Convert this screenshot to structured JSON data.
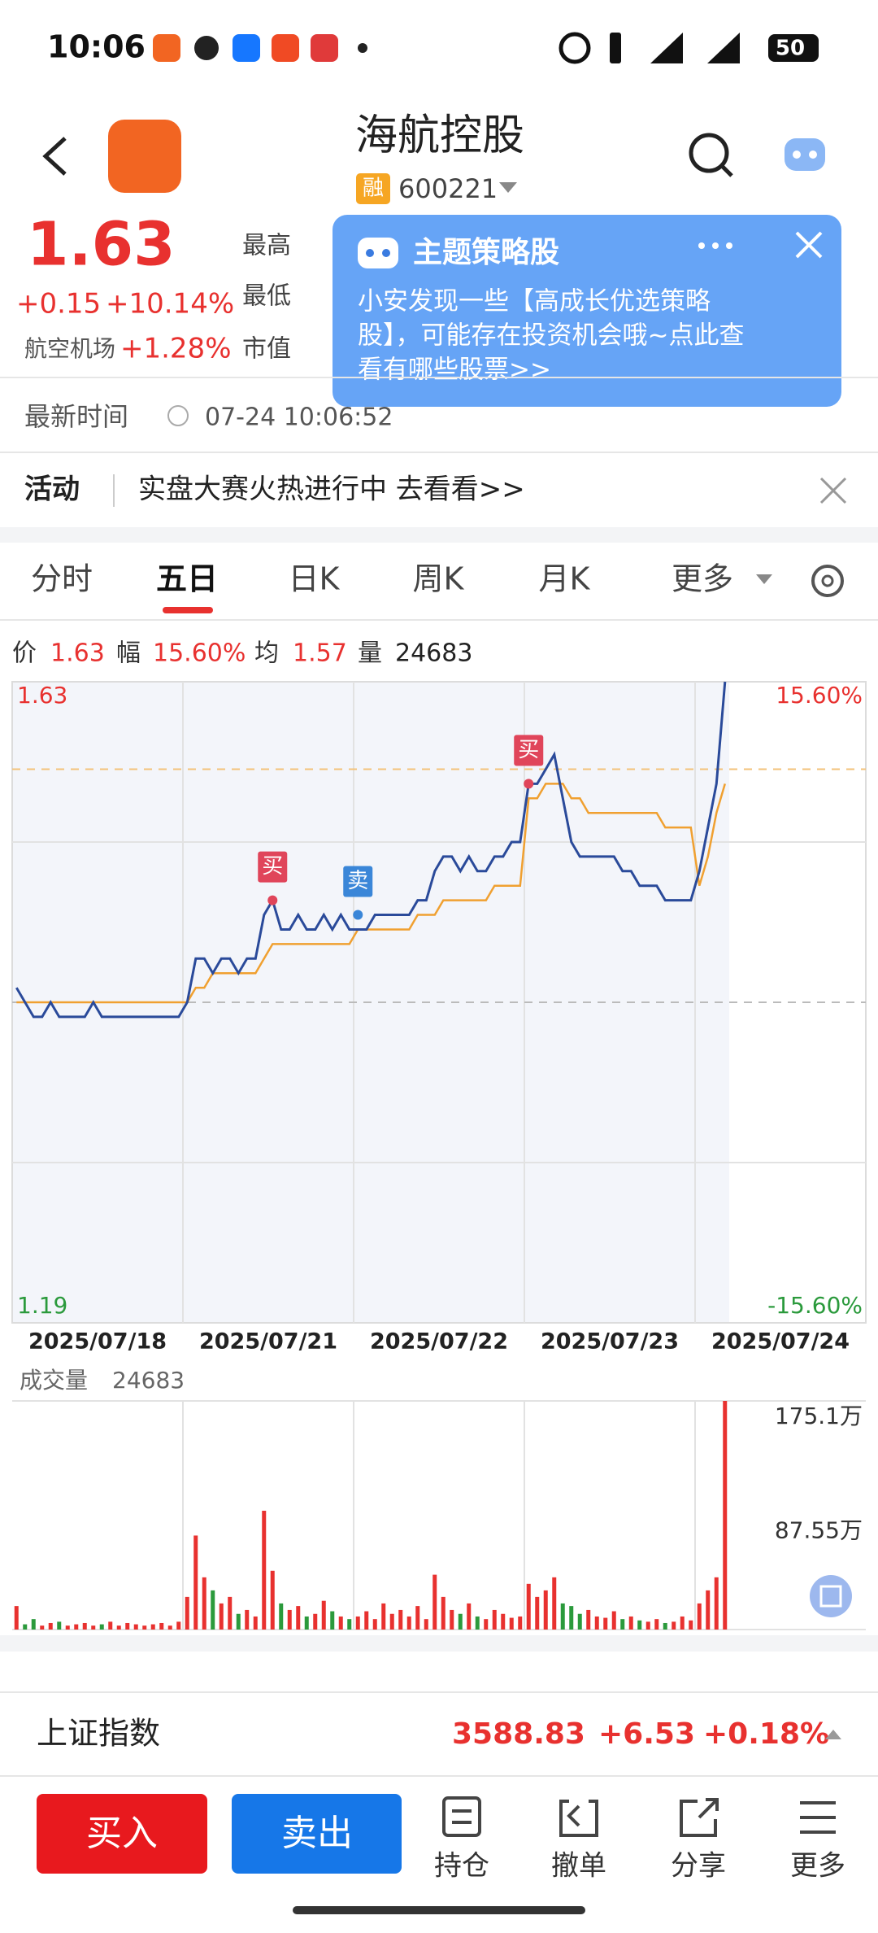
{
  "status_bar": {
    "time": "10:06",
    "battery": "50"
  },
  "header": {
    "title": "海航控股",
    "badge": "融",
    "code": "600221"
  },
  "quote": {
    "price": "1.63",
    "change": "+0.15",
    "change_pct": "+10.14%",
    "sector": "航空机场",
    "sector_pct": "+1.28%",
    "labels": [
      "最高",
      "最低",
      "市值"
    ]
  },
  "popup": {
    "title": "主题策略股",
    "lines": [
      "小安发现一些【高成长优选策略",
      "股】，可能存在投资机会哦~点此查",
      "看有哪些股票>>"
    ]
  },
  "update": {
    "label": "最新时间",
    "time": "07-24 10:06:52"
  },
  "activity": {
    "label": "活动",
    "text": "实盘大赛火热进行中 去看看>>"
  },
  "tabs": [
    "分时",
    "五日",
    "日K",
    "周K",
    "月K",
    "更多"
  ],
  "info": {
    "price_label": "价",
    "price": 1.63,
    "amp_label": "幅",
    "amp": "15.60%",
    "avg_label": "均",
    "avg": 1.57,
    "vol_label": "量",
    "vol": 24683
  },
  "chart": {
    "ylim": [
      1.19,
      1.63
    ],
    "yticks": [
      1.63,
      1.19
    ],
    "pct_labels": [
      "15.60%",
      "-15.60%"
    ],
    "grid": [
      1.52,
      1.3
    ],
    "base": 1.41,
    "dates": [
      "2025/07/18",
      "2025/07/21",
      "2025/07/22",
      "2025/07/23",
      "2025/07/24"
    ],
    "price": [
      1.42,
      1.41,
      1.4,
      1.4,
      1.41,
      1.4,
      1.4,
      1.4,
      1.4,
      1.41,
      1.4,
      1.4,
      1.4,
      1.4,
      1.4,
      1.4,
      1.4,
      1.4,
      1.4,
      1.4,
      1.41,
      1.44,
      1.44,
      1.43,
      1.44,
      1.44,
      1.43,
      1.44,
      1.44,
      1.47,
      1.48,
      1.46,
      1.46,
      1.47,
      1.46,
      1.46,
      1.47,
      1.46,
      1.47,
      1.46,
      1.46,
      1.46,
      1.47,
      1.47,
      1.47,
      1.47,
      1.47,
      1.48,
      1.48,
      1.5,
      1.51,
      1.51,
      1.5,
      1.51,
      1.5,
      1.5,
      1.51,
      1.51,
      1.52,
      1.52,
      1.56,
      1.56,
      1.57,
      1.58,
      1.55,
      1.52,
      1.51,
      1.51,
      1.51,
      1.51,
      1.51,
      1.5,
      1.5,
      1.49,
      1.49,
      1.49,
      1.48,
      1.48,
      1.48,
      1.48,
      1.5,
      1.53,
      1.56,
      1.63,
      null,
      null,
      null,
      null,
      null,
      null,
      null,
      null,
      null,
      null,
      null,
      null,
      null,
      null,
      null,
      null
    ],
    "avg": [
      1.41,
      1.41,
      1.41,
      1.41,
      1.41,
      1.41,
      1.41,
      1.41,
      1.41,
      1.41,
      1.41,
      1.41,
      1.41,
      1.41,
      1.41,
      1.41,
      1.41,
      1.41,
      1.41,
      1.41,
      1.41,
      1.42,
      1.42,
      1.43,
      1.43,
      1.43,
      1.43,
      1.43,
      1.43,
      1.44,
      1.45,
      1.45,
      1.45,
      1.45,
      1.45,
      1.45,
      1.45,
      1.45,
      1.45,
      1.45,
      1.46,
      1.46,
      1.46,
      1.46,
      1.46,
      1.46,
      1.46,
      1.47,
      1.47,
      1.47,
      1.48,
      1.48,
      1.48,
      1.48,
      1.48,
      1.48,
      1.49,
      1.49,
      1.49,
      1.49,
      1.55,
      1.55,
      1.56,
      1.56,
      1.56,
      1.55,
      1.55,
      1.54,
      1.54,
      1.54,
      1.54,
      1.54,
      1.54,
      1.54,
      1.54,
      1.54,
      1.53,
      1.53,
      1.53,
      1.53,
      1.49,
      1.51,
      1.54,
      1.56,
      null,
      null,
      null,
      null,
      null,
      null,
      null,
      null,
      null,
      null,
      null,
      null,
      null,
      null,
      null,
      null
    ],
    "trades": [
      {
        "label": "买",
        "price": 1.48
      },
      {
        "label": "卖",
        "price": 1.47
      },
      {
        "label": "买",
        "price": 1.56
      }
    ],
    "volume": {
      "title": "成交量",
      "value": 24683,
      "ylim": [
        0,
        175.1
      ],
      "yticks": [
        {
          "value": 175.1,
          "label": "175.1万"
        },
        {
          "value": 87.55,
          "label": "87.55万"
        }
      ],
      "values": [
        18,
        4,
        8,
        3,
        5,
        6,
        3,
        4,
        5,
        3,
        4,
        6,
        3,
        5,
        4,
        3,
        4,
        5,
        3,
        6,
        25,
        72,
        40,
        30,
        20,
        25,
        12,
        15,
        10,
        91,
        45,
        20,
        15,
        18,
        10,
        12,
        22,
        14,
        10,
        8,
        10,
        14,
        8,
        20,
        12,
        15,
        10,
        18,
        8,
        42,
        25,
        15,
        12,
        20,
        10,
        8,
        15,
        12,
        9,
        10,
        35,
        25,
        30,
        40,
        20,
        18,
        12,
        15,
        10,
        9,
        14,
        8,
        10,
        7,
        6,
        8,
        5,
        6,
        10,
        7,
        20,
        30,
        40,
        175.1,
        null,
        null,
        null,
        null,
        null,
        null,
        null,
        null,
        null,
        null,
        null,
        null,
        null,
        null,
        null,
        null
      ]
    }
  },
  "index_bar": {
    "name": "上证指数",
    "value": "3588.83",
    "change": "+6.53",
    "pct": "+0.18%"
  },
  "actions": {
    "buy": "买入",
    "sell": "卖出",
    "items": [
      "持仓",
      "撤单",
      "分享",
      "更多"
    ]
  }
}
